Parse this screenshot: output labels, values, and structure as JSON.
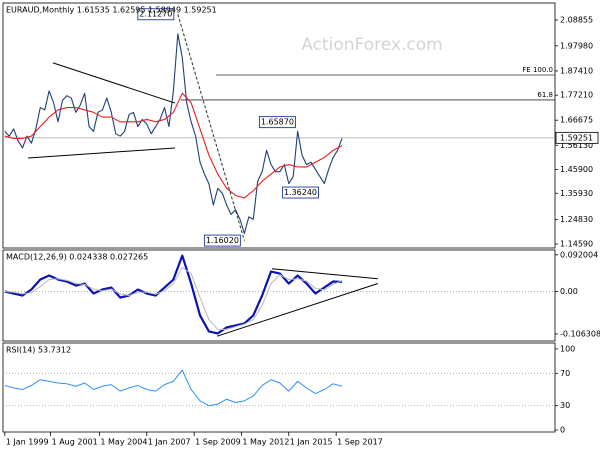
{
  "chart_data": [
    {
      "type": "line",
      "title": "EURAUD,Monthly 1.61535 1.62595 1.58949 1.59251",
      "watermark": "ActionForex.com",
      "xlim": [
        1998.9,
        2030
      ],
      "ylim": [
        1.129,
        2.16
      ],
      "yticks": [
        2.08855,
        {
          "value": 1.9798,
          "label": "1.97980"
        },
        {
          "value": 1.8741,
          "label": "1.87410"
        },
        {
          "value": 1.7721,
          "label": "1.77210"
        },
        1.66675,
        {
          "value": 1.5613,
          "label": "1.56130"
        },
        {
          "value": 1.459,
          "label": "1.45900"
        },
        {
          "value": 1.3593,
          "label": "1.35930"
        },
        {
          "value": 1.2483,
          "label": "1.24830"
        },
        {
          "value": 1.1459,
          "label": "1.14590"
        }
      ],
      "series": [
        {
          "color": "#1f3f7a",
          "x": [
            1999,
            1999.25,
            1999.5,
            1999.75,
            2000,
            2000.25,
            2000.5,
            2000.75,
            2001,
            2001.25,
            2001.5,
            2001.75,
            2002,
            2002.25,
            2002.5,
            2002.75,
            2003,
            2003.25,
            2003.5,
            2003.75,
            2004,
            2004.25,
            2004.5,
            2004.75,
            2005,
            2005.25,
            2005.5,
            2005.75,
            2006,
            2006.25,
            2006.5,
            2006.75,
            2007,
            2007.25,
            2007.5,
            2007.75,
            2008,
            2008.25,
            2008.5,
            2008.75,
            2009,
            2009.25,
            2009.5,
            2009.75,
            2010,
            2010.25,
            2010.5,
            2010.75,
            2011,
            2011.25,
            2011.5,
            2011.75,
            2012,
            2012.25,
            2012.5,
            2012.75,
            2013,
            2013.25,
            2013.5,
            2013.75,
            2014,
            2014.25,
            2014.5,
            2014.75,
            2015,
            2015.25,
            2015.5,
            2015.75,
            2016,
            2016.25,
            2016.5,
            2016.75,
            2017,
            2017.25,
            2017.5,
            2017.75,
            2018
          ],
          "values": [
            1.62,
            1.6,
            1.63,
            1.58,
            1.55,
            1.6,
            1.57,
            1.63,
            1.72,
            1.71,
            1.79,
            1.74,
            1.66,
            1.75,
            1.77,
            1.76,
            1.7,
            1.73,
            1.78,
            1.64,
            1.62,
            1.7,
            1.71,
            1.76,
            1.7,
            1.61,
            1.6,
            1.62,
            1.69,
            1.7,
            1.64,
            1.67,
            1.65,
            1.61,
            1.64,
            1.67,
            1.72,
            1.64,
            1.79,
            2.03,
            1.93,
            1.74,
            1.66,
            1.6,
            1.49,
            1.44,
            1.4,
            1.31,
            1.38,
            1.36,
            1.31,
            1.27,
            1.29,
            1.25,
            1.19,
            1.26,
            1.25,
            1.41,
            1.45,
            1.54,
            1.48,
            1.45,
            1.45,
            1.48,
            1.4,
            1.43,
            1.62,
            1.52,
            1.48,
            1.49,
            1.46,
            1.43,
            1.4,
            1.46,
            1.51,
            1.54,
            1.59
          ]
        },
        {
          "color": "#e8201f",
          "x": [
            1999,
            1999.5,
            2000,
            2000.5,
            2001,
            2001.5,
            2002,
            2002.5,
            2003,
            2003.5,
            2004,
            2004.5,
            2005,
            2005.5,
            2006,
            2006.5,
            2007,
            2007.5,
            2008,
            2008.5,
            2009,
            2009.5,
            2010,
            2010.5,
            2011,
            2011.5,
            2012,
            2012.5,
            2013,
            2013.5,
            2014,
            2014.5,
            2015,
            2015.5,
            2016,
            2016.5,
            2017,
            2017.5,
            2018
          ],
          "values": [
            1.6,
            1.59,
            1.59,
            1.6,
            1.64,
            1.68,
            1.71,
            1.72,
            1.72,
            1.71,
            1.7,
            1.68,
            1.68,
            1.66,
            1.66,
            1.66,
            1.67,
            1.66,
            1.67,
            1.7,
            1.78,
            1.74,
            1.63,
            1.52,
            1.44,
            1.38,
            1.35,
            1.34,
            1.37,
            1.41,
            1.44,
            1.47,
            1.48,
            1.47,
            1.47,
            1.49,
            1.51,
            1.54,
            1.56
          ]
        }
      ],
      "trendlines": [
        {
          "x": [
            2001.72,
            2008.59
          ],
          "values": [
            1.908,
            1.739
          ]
        },
        {
          "x": [
            2000.31,
            2008.59
          ],
          "values": [
            1.508,
            1.55
          ]
        },
        {
          "x": [
            2008.75,
            2012.5
          ],
          "values": [
            2.1127,
            1.1602
          ],
          "dashed": true
        }
      ],
      "retracements": [
        {
          "value": 1.857,
          "label": "FE 100.0",
          "x": 2010.9
        },
        {
          "value": 1.752,
          "label": "61.8",
          "x": 2008.9
        }
      ],
      "price_labels": [
        {
          "value": 2.1127,
          "label": "2.11270",
          "x": 2008.75
        },
        {
          "value": 1.6587,
          "label": "1.65870",
          "x": 2015.6
        },
        {
          "value": 1.3624,
          "label": "1.36240",
          "x": 2016.9
        },
        {
          "value": 1.1602,
          "label": "1.16020",
          "x": 2012.5
        }
      ],
      "current": {
        "value": 1.59251,
        "label": "1.59251"
      }
    },
    {
      "type": "line",
      "title": "MACD(12,26,9) 0.024338 0.027265",
      "xlim": [
        1998.9,
        2030
      ],
      "ylim": [
        -0.124,
        0.104
      ],
      "yticks": [
        0.092004,
        {
          "value": 0,
          "label": "0.00"
        },
        -0.106308
      ],
      "levels": [
        0
      ],
      "series": [
        {
          "color": "#0a14b4",
          "width": 2.2,
          "x": [
            1999,
            1999.5,
            2000,
            2000.5,
            2001,
            2001.5,
            2002,
            2002.5,
            2003,
            2003.5,
            2004,
            2004.5,
            2005,
            2005.5,
            2006,
            2006.5,
            2007,
            2007.5,
            2008,
            2008.5,
            2009,
            2009.5,
            2010,
            2010.5,
            2011,
            2011.5,
            2012,
            2012.5,
            2013,
            2013.5,
            2014,
            2014.5,
            2015,
            2015.5,
            2016,
            2016.5,
            2017,
            2017.5,
            2018
          ],
          "values": [
            0.0,
            -0.005,
            -0.01,
            0.005,
            0.03,
            0.04,
            0.03,
            0.025,
            0.015,
            0.02,
            -0.005,
            0.005,
            0.01,
            -0.015,
            -0.01,
            0.005,
            -0.005,
            -0.01,
            0.01,
            0.03,
            0.09,
            0.02,
            -0.06,
            -0.1,
            -0.105,
            -0.09,
            -0.085,
            -0.08,
            -0.06,
            -0.01,
            0.05,
            0.045,
            0.02,
            0.04,
            0.02,
            -0.005,
            0.01,
            0.025,
            0.024
          ]
        },
        {
          "color": "#b8b8b8",
          "width": 1,
          "x": [
            1999,
            1999.5,
            2000,
            2000.5,
            2001,
            2001.5,
            2002,
            2002.5,
            2003,
            2003.5,
            2004,
            2004.5,
            2005,
            2005.5,
            2006,
            2006.5,
            2007,
            2007.5,
            2008,
            2008.5,
            2009,
            2009.5,
            2010,
            2010.5,
            2011,
            2011.5,
            2012,
            2012.5,
            2013,
            2013.5,
            2014,
            2014.5,
            2015,
            2015.5,
            2016,
            2016.5,
            2017,
            2017.5,
            2018
          ],
          "values": [
            0.0,
            -0.002,
            -0.006,
            -0.003,
            0.012,
            0.03,
            0.032,
            0.028,
            0.02,
            0.018,
            0.006,
            0.002,
            0.006,
            -0.006,
            -0.01,
            -0.002,
            -0.002,
            -0.007,
            0.002,
            0.02,
            0.06,
            0.045,
            -0.015,
            -0.07,
            -0.095,
            -0.095,
            -0.088,
            -0.082,
            -0.07,
            -0.035,
            0.02,
            0.042,
            0.03,
            0.032,
            0.026,
            0.008,
            0.004,
            0.018,
            0.027
          ]
        }
      ],
      "trendlines": [
        {
          "x": [
            2014.05,
            2020.02
          ],
          "values": [
            0.057,
            0.032
          ]
        },
        {
          "x": [
            2010.96,
            2020.02
          ],
          "values": [
            -0.112,
            0.02
          ]
        }
      ]
    },
    {
      "type": "line",
      "title": "RSI(14) 53.7312",
      "xlim": [
        1998.9,
        2030
      ],
      "ylim": [
        -2.4,
        107.3
      ],
      "yticks": [
        100,
        70,
        30,
        0
      ],
      "levels": [
        70,
        30
      ],
      "xticks": [
        {
          "value": 1999,
          "label": "1 Jan 1999"
        },
        {
          "value": 2001.58,
          "label": "1 Aug 2001"
        },
        {
          "value": 2004.33,
          "label": "1 May 2004"
        },
        {
          "value": 2007,
          "label": "1 Jan 2007"
        },
        {
          "value": 2009.67,
          "label": "1 Sep 2009"
        },
        {
          "value": 2012.33,
          "label": "1 May 2012"
        },
        {
          "value": 2015,
          "label": "1 Jan 2015"
        },
        {
          "value": 2017.67,
          "label": "1 Sep 2017"
        }
      ],
      "series": [
        {
          "color": "#2f8fff",
          "width": 1,
          "x": [
            1999,
            1999.5,
            2000,
            2000.5,
            2001,
            2001.5,
            2002,
            2002.5,
            2003,
            2003.5,
            2004,
            2004.5,
            2005,
            2005.5,
            2006,
            2006.5,
            2007,
            2007.5,
            2008,
            2008.5,
            2009,
            2009.5,
            2010,
            2010.5,
            2011,
            2011.5,
            2012,
            2012.5,
            2013,
            2013.5,
            2014,
            2014.5,
            2015,
            2015.5,
            2016,
            2016.5,
            2017,
            2017.5,
            2018
          ],
          "values": [
            55,
            52,
            50,
            55,
            62,
            60,
            58,
            57,
            54,
            58,
            50,
            54,
            56,
            48,
            52,
            55,
            50,
            48,
            56,
            60,
            74,
            50,
            36,
            30,
            32,
            38,
            34,
            36,
            42,
            55,
            62,
            58,
            48,
            60,
            52,
            45,
            50,
            57,
            54
          ]
        }
      ]
    }
  ]
}
